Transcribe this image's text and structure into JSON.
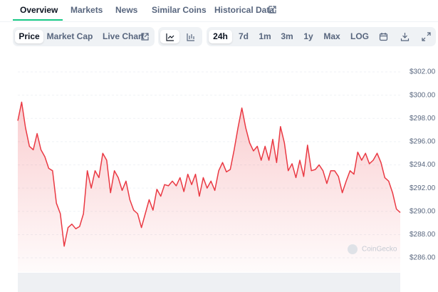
{
  "tabs": [
    "Overview",
    "Markets",
    "News",
    "Similar Coins",
    "Historical Data"
  ],
  "chart_controls": [
    "Price",
    "Market Cap",
    "Live Chart"
  ],
  "ranges": [
    "24h",
    "7d",
    "1m",
    "3m",
    "1y",
    "Max",
    "LOG"
  ],
  "chart_data": {
    "type": "line",
    "color": "#ea3943",
    "watermark": "CoinGecko",
    "values": [
      297.8,
      299.4,
      297.2,
      295.6,
      295.3,
      296.7,
      295.3,
      294.7,
      293.7,
      293.5,
      290.7,
      289.8,
      287.0,
      288.6,
      288.9,
      288.5,
      288.7,
      289.8,
      293.5,
      292.0,
      293.5,
      292.9,
      295.0,
      294.4,
      291.6,
      293.5,
      292.9,
      291.8,
      292.6,
      291.0,
      290.1,
      289.8,
      288.6,
      289.8,
      291.0,
      290.1,
      291.9,
      291.3,
      292.3,
      292.2,
      292.6,
      292.2,
      292.9,
      291.7,
      293.2,
      292.3,
      293.2,
      291.3,
      292.9,
      292.0,
      292.6,
      291.8,
      293.5,
      294.2,
      293.4,
      293.6,
      295.3,
      297.2,
      298.9,
      297.2,
      295.9,
      295.2,
      295.6,
      294.4,
      295.6,
      294.4,
      296.2,
      294.2,
      297.3,
      295.9,
      293.5,
      294.1,
      292.9,
      294.4,
      293.0,
      295.7,
      293.5,
      293.6,
      294.0,
      293.5,
      292.4,
      293.5,
      293.5,
      293.0,
      291.6,
      292.6,
      293.5,
      293.2,
      295.1,
      294.4,
      295.0,
      294.1,
      294.4,
      295.0,
      294.2,
      292.9,
      292.6,
      291.6,
      290.2,
      289.9
    ],
    "ylim": [
      286,
      302
    ],
    "yticks": [
      {
        "value": 286,
        "label": "$286.00"
      },
      {
        "value": 288,
        "label": "$288.00"
      },
      {
        "value": 290,
        "label": "$290.00"
      },
      {
        "value": 292,
        "label": "$292.00"
      },
      {
        "value": 294,
        "label": "$294.00"
      },
      {
        "value": 296,
        "label": "$296.00"
      },
      {
        "value": 298,
        "label": "$298.00"
      },
      {
        "value": 300,
        "label": "$300.00"
      },
      {
        "value": 302,
        "label": "$302.00"
      }
    ],
    "grid": true
  }
}
